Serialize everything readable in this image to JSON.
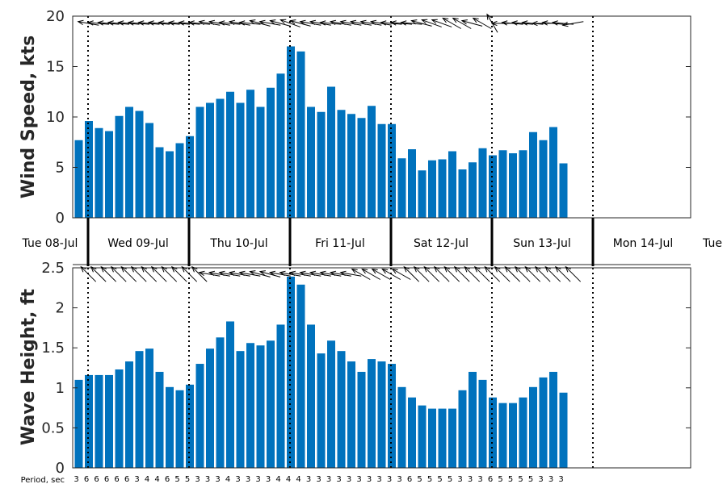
{
  "colors": {
    "bar": "#0072bd",
    "axis": "#262626",
    "day_divider": "#000000",
    "arrow": "#000000"
  },
  "chart_data": [
    {
      "type": "bar",
      "ylabel": "Wind Speed, kts",
      "ylim": [
        0,
        20
      ],
      "yticks": [
        "0",
        "5",
        "10",
        "15",
        "20"
      ],
      "values": [
        7.7,
        9.6,
        8.9,
        8.6,
        10.1,
        11.0,
        10.6,
        9.4,
        7.0,
        6.6,
        7.4,
        8.1,
        11.0,
        11.4,
        11.8,
        12.5,
        11.4,
        12.7,
        11.0,
        12.9,
        14.3,
        17.0,
        16.5,
        11.0,
        10.5,
        13.0,
        10.7,
        10.3,
        9.9,
        11.1,
        9.3,
        9.3,
        5.9,
        6.8,
        4.7,
        5.7,
        5.8,
        6.6,
        4.8,
        5.5,
        6.9,
        6.2,
        6.7,
        6.4,
        6.7,
        8.5,
        7.7,
        9.0,
        5.4
      ],
      "direction_deg": [
        100,
        95,
        95,
        95,
        95,
        95,
        95,
        95,
        95,
        95,
        95,
        95,
        100,
        100,
        95,
        100,
        95,
        105,
        100,
        105,
        110,
        105,
        100,
        100,
        95,
        100,
        100,
        100,
        100,
        100,
        95,
        95,
        95,
        105,
        110,
        110,
        120,
        120,
        105,
        120,
        150,
        90,
        95,
        95,
        95,
        90,
        95,
        95,
        80
      ],
      "grid": false
    },
    {
      "type": "bar",
      "ylabel": "Wave Height, ft",
      "ylim": [
        0,
        2.5
      ],
      "yticks": [
        "0",
        "0.5",
        "1",
        "1.5",
        "2",
        "2.5"
      ],
      "values": [
        1.1,
        1.16,
        1.16,
        1.16,
        1.23,
        1.33,
        1.46,
        1.49,
        1.2,
        1.01,
        0.97,
        1.04,
        1.3,
        1.49,
        1.63,
        1.83,
        1.46,
        1.56,
        1.53,
        1.59,
        1.79,
        2.39,
        2.29,
        1.79,
        1.43,
        1.59,
        1.46,
        1.33,
        1.2,
        1.36,
        1.33,
        1.3,
        1.01,
        0.88,
        0.78,
        0.74,
        0.74,
        0.74,
        0.97,
        1.2,
        1.1,
        0.88,
        0.81,
        0.81,
        0.88,
        1.01,
        1.13,
        1.2,
        0.94
      ],
      "direction_deg": [
        135,
        135,
        135,
        135,
        135,
        135,
        135,
        135,
        135,
        135,
        135,
        135,
        100,
        100,
        100,
        100,
        100,
        105,
        105,
        100,
        100,
        100,
        100,
        100,
        100,
        100,
        100,
        120,
        120,
        120,
        120,
        120,
        135,
        135,
        135,
        135,
        135,
        135,
        135,
        135,
        135,
        135,
        135,
        135,
        135,
        135,
        135,
        135,
        135
      ],
      "grid": false
    }
  ],
  "day_labels": [
    "Tue 08-Jul",
    "Wed 09-Jul",
    "Thu 10-Jul",
    "Fri 11-Jul",
    "Sat 12-Jul",
    "Sun 13-Jul",
    "Mon 14-Jul",
    "Tue"
  ],
  "period_title": "Period, sec",
  "periods": [
    "3",
    "6",
    "6",
    "6",
    "6",
    "6",
    "3",
    "4",
    "4",
    "6",
    "5",
    "5",
    "3",
    "3",
    "3",
    "4",
    "3",
    "3",
    "3",
    "3",
    "4",
    "4",
    "4",
    "3",
    "3",
    "3",
    "3",
    "3",
    "3",
    "3",
    "3",
    "3",
    "3",
    "6",
    "5",
    "5",
    "5",
    "5",
    "3",
    "3",
    "3",
    "6",
    "5",
    "5",
    "5",
    "5",
    "3",
    "3",
    "3"
  ]
}
